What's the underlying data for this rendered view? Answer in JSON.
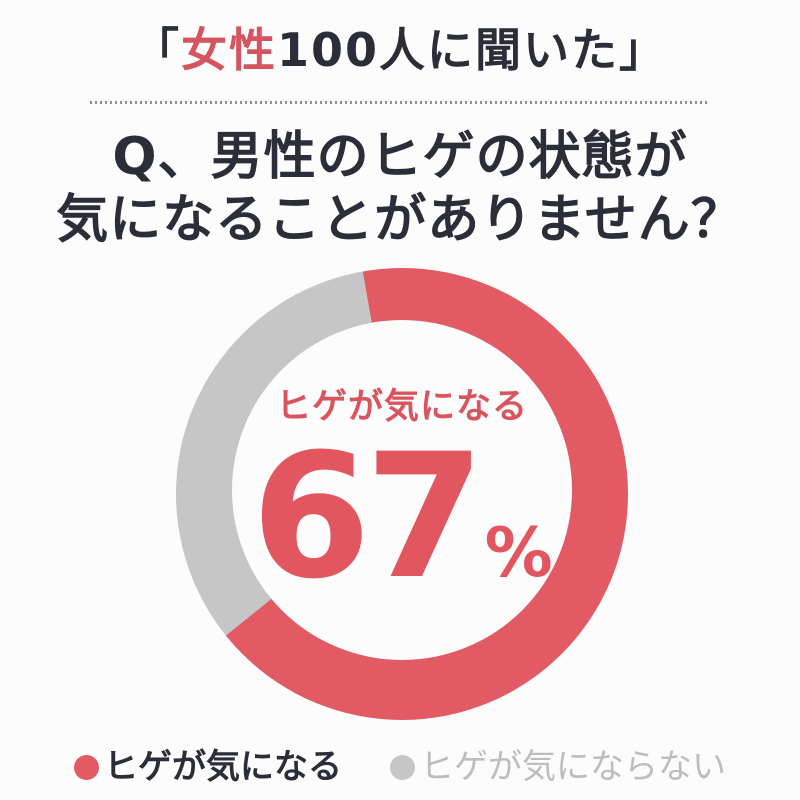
{
  "header": {
    "prefix": "「",
    "highlight": "女性",
    "suffix": "100人に聞いた」"
  },
  "question": {
    "line1": "Q、男性のヒゲの状態が",
    "line2": "気になることがありません？"
  },
  "chart_data": {
    "type": "pie",
    "variant": "donut",
    "title": "Q、男性のヒゲの状態が気になることがありません？",
    "subtitle": "「女性100人に聞いた」",
    "categories": [
      "ヒゲが気になる",
      "ヒゲが気にならない"
    ],
    "values": [
      67,
      33
    ],
    "unit": "%",
    "colors": [
      "#e25a64",
      "#c6c6c6"
    ],
    "start_angle_deg": -10,
    "direction": "clockwise",
    "center_label": "ヒゲが気になる",
    "center_value": "67",
    "center_unit": "%",
    "legend_position": "bottom",
    "sample_size": 100
  },
  "colors": {
    "accent_red": "#e1565f",
    "header_red": "#d5545f",
    "slice_gray": "#c6c6c6",
    "dark_text": "#2b2d38",
    "legend_gray_text": "#bdbdbd",
    "background": "#fcfcfc"
  }
}
